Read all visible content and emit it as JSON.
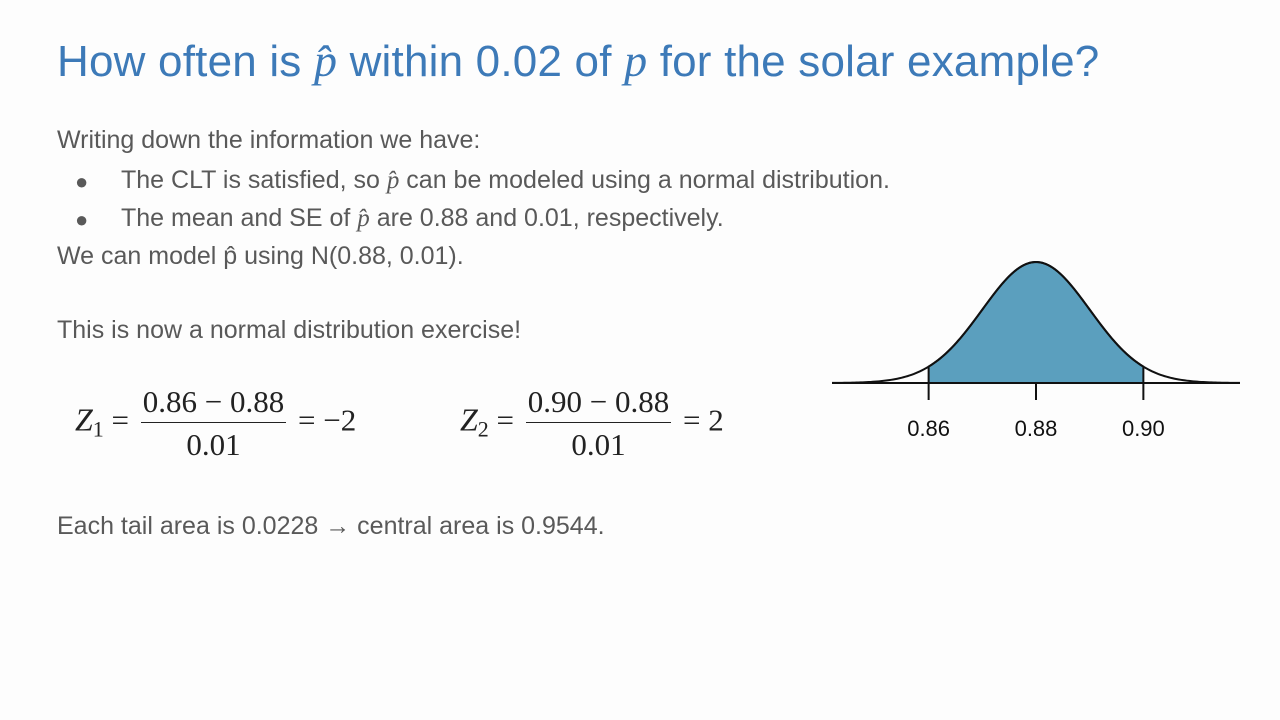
{
  "slide": {
    "title_parts": [
      "How often is ",
      "p̂",
      " within 0.02 of ",
      "p",
      " for the solar example?"
    ],
    "intro": "Writing down the information we have:",
    "bullets": [
      {
        "pre": "The CLT is satisfied, so ",
        "sym": "p̂",
        "post": " can be modeled using a normal distribution."
      },
      {
        "pre": "The mean and SE of ",
        "sym": "p̂",
        "post": " are 0.88 and 0.01, respectively."
      }
    ],
    "bullet_glyph": "●",
    "model_line": "We can model p̂ using N(0.88, 0.01).",
    "exercise_line": "This is now a normal distribution exercise!",
    "equations": [
      {
        "var": "Z",
        "sub": "1",
        "numerator": "0.86 − 0.88",
        "denominator": "0.01",
        "result": "−2"
      },
      {
        "var": "Z",
        "sub": "2",
        "numerator": "0.90 − 0.88",
        "denominator": "0.01",
        "result": "2"
      }
    ],
    "conclusion": "Each tail area is 0.0228 → central area is 0.9544."
  },
  "chart_data": {
    "type": "area",
    "distribution": "normal",
    "mean": 0.88,
    "sd": 0.01,
    "xlim": [
      0.842,
      0.918
    ],
    "shaded_interval": [
      0.86,
      0.9
    ],
    "ticks": [
      0.86,
      0.88,
      0.9
    ],
    "tick_labels": [
      "0.86",
      "0.88",
      "0.90"
    ],
    "fill_color": "#5b9fbe",
    "line_color": "#111111"
  }
}
